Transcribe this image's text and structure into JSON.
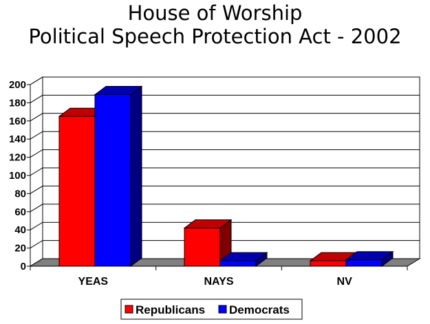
{
  "chart_data": {
    "type": "bar",
    "title": [
      "House of Worship",
      "Political Speech Protection Act - 2002"
    ],
    "categories": [
      "YEAS",
      "NAYS",
      "NV"
    ],
    "series": [
      {
        "name": "Republicans",
        "values": [
          165,
          42,
          6
        ],
        "color": "#ff0000",
        "side_color": "#800000",
        "top_color": "#c00000"
      },
      {
        "name": "Democrats",
        "values": [
          189,
          6,
          7
        ],
        "color": "#0000ff",
        "side_color": "#000080",
        "top_color": "#0000b0"
      }
    ],
    "ylim": [
      0,
      200
    ],
    "yticks": [
      "0",
      "20",
      "40",
      "60",
      "80",
      "100",
      "120",
      "140",
      "160",
      "180",
      "200"
    ],
    "grid": true,
    "style": "3d-clustered",
    "legend_position": "bottom"
  }
}
